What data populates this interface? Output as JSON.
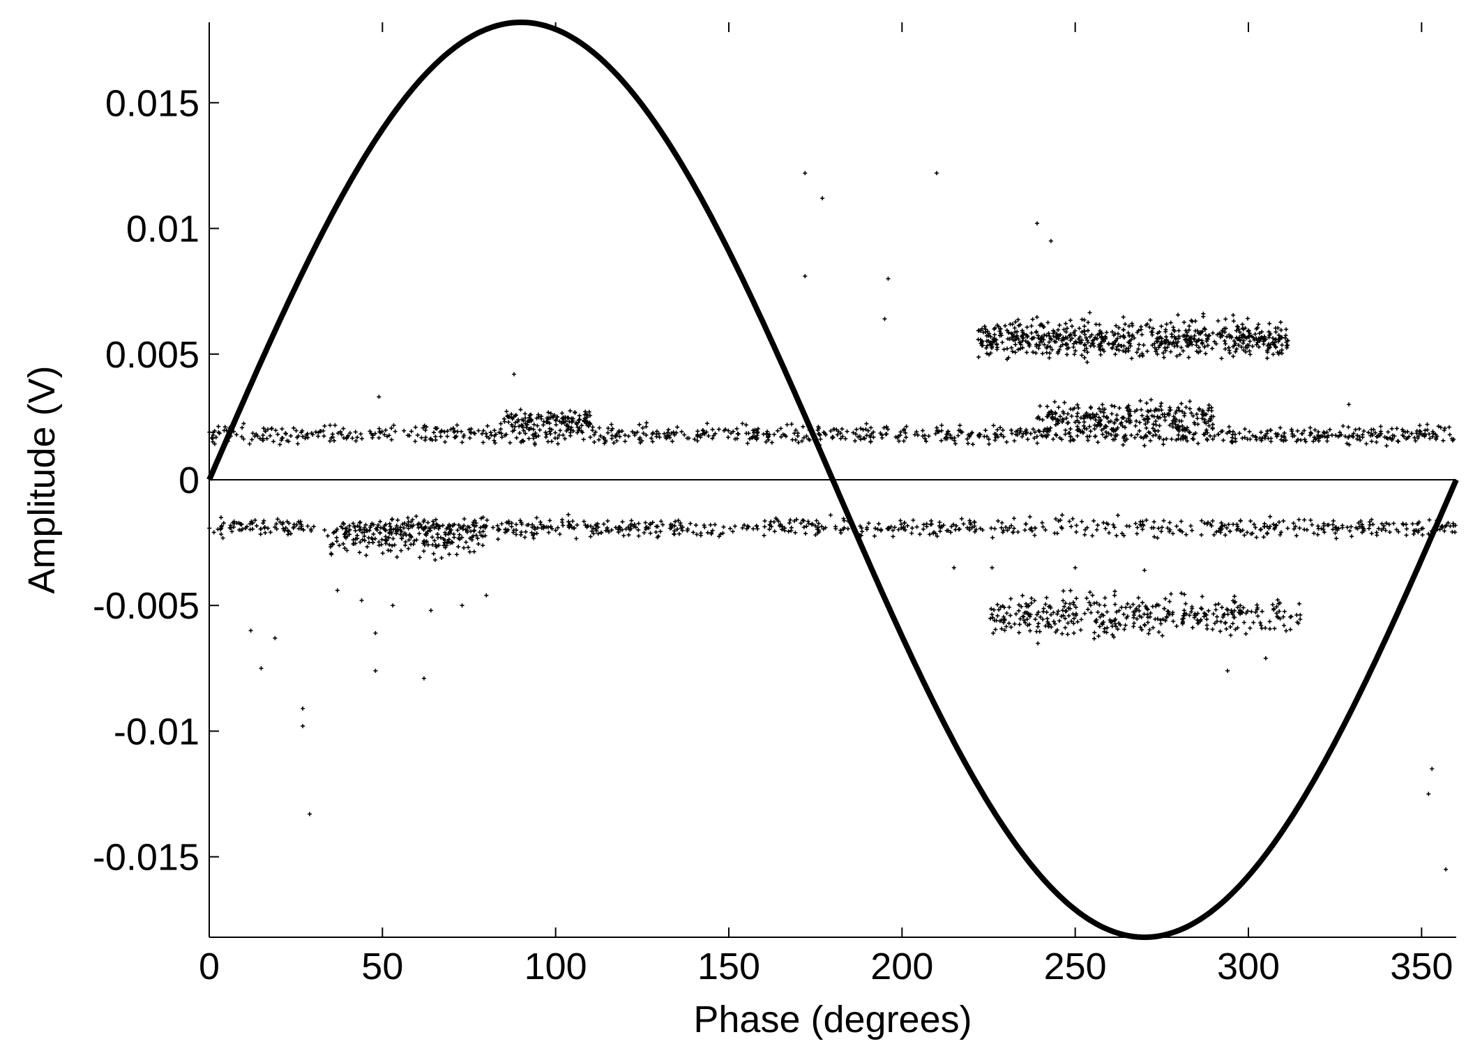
{
  "chart_data": {
    "type": "scatter",
    "title": "",
    "xlabel": "Phase (degrees)",
    "ylabel": "Amplitude (V)",
    "xlim": [
      0,
      360
    ],
    "ylim": [
      -0.0182,
      0.0182
    ],
    "grid": false,
    "x_ticks": [
      0,
      50,
      100,
      150,
      200,
      250,
      300,
      350
    ],
    "x_tick_labels": [
      "0",
      "50",
      "100",
      "150",
      "200",
      "250",
      "300",
      "350"
    ],
    "y_ticks": [
      0.015,
      0.01,
      0.005,
      0,
      -0.005,
      -0.01,
      -0.015
    ],
    "y_tick_labels": [
      "0.015",
      "0.01",
      "0.005",
      "0",
      "-0.005",
      "-0.01",
      "-0.015"
    ],
    "reference_sine": {
      "amplitude": 0.0182,
      "period_degrees": 360,
      "description_visible": false
    },
    "zero_line": 0,
    "scatter_clusters": [
      {
        "phase_range": [
          0,
          360
        ],
        "amplitude_center": 0.0018,
        "amplitude_spread": 0.00035,
        "count": 900
      },
      {
        "phase_range": [
          85,
          110
        ],
        "amplitude_center": 0.0024,
        "amplitude_spread": 0.0004,
        "count": 120
      },
      {
        "phase_range": [
          0,
          360
        ],
        "amplitude_center": -0.0019,
        "amplitude_spread": 0.00035,
        "count": 800
      },
      {
        "phase_range": [
          35,
          80
        ],
        "amplitude_center": -0.0023,
        "amplitude_spread": 0.0007,
        "count": 200
      },
      {
        "phase_range": [
          222,
          312
        ],
        "amplitude_center": 0.0056,
        "amplitude_spread": 0.0007,
        "count": 650
      },
      {
        "phase_range": [
          238,
          290
        ],
        "amplitude_center": 0.0025,
        "amplitude_spread": 0.0006,
        "count": 260
      },
      {
        "phase_range": [
          225,
          315
        ],
        "amplitude_center": -0.0054,
        "amplitude_spread": 0.0008,
        "count": 380
      }
    ],
    "outliers": [
      [
        172,
        0.0122
      ],
      [
        177,
        0.0112
      ],
      [
        172,
        0.0081
      ],
      [
        196,
        0.008
      ],
      [
        195,
        0.0064
      ],
      [
        210,
        0.0122
      ],
      [
        239,
        0.0102
      ],
      [
        243,
        0.0095
      ],
      [
        88,
        0.0042
      ],
      [
        49,
        0.0033
      ],
      [
        329,
        0.003
      ],
      [
        12,
        -0.006
      ],
      [
        15,
        -0.0075
      ],
      [
        19,
        -0.0063
      ],
      [
        27,
        -0.0091
      ],
      [
        27,
        -0.0098
      ],
      [
        29,
        -0.0133
      ],
      [
        48,
        -0.0061
      ],
      [
        48,
        -0.0076
      ],
      [
        62,
        -0.0079
      ],
      [
        37,
        -0.0044
      ],
      [
        44,
        -0.0048
      ],
      [
        53,
        -0.005
      ],
      [
        64,
        -0.0052
      ],
      [
        73,
        -0.005
      ],
      [
        80,
        -0.0046
      ],
      [
        294,
        -0.0076
      ],
      [
        305,
        -0.0071
      ],
      [
        352,
        -0.0125
      ],
      [
        353,
        -0.0115
      ],
      [
        357,
        -0.0155
      ],
      [
        215,
        -0.0035
      ],
      [
        226,
        -0.0035
      ],
      [
        250,
        -0.0035
      ],
      [
        270,
        -0.0036
      ]
    ]
  }
}
